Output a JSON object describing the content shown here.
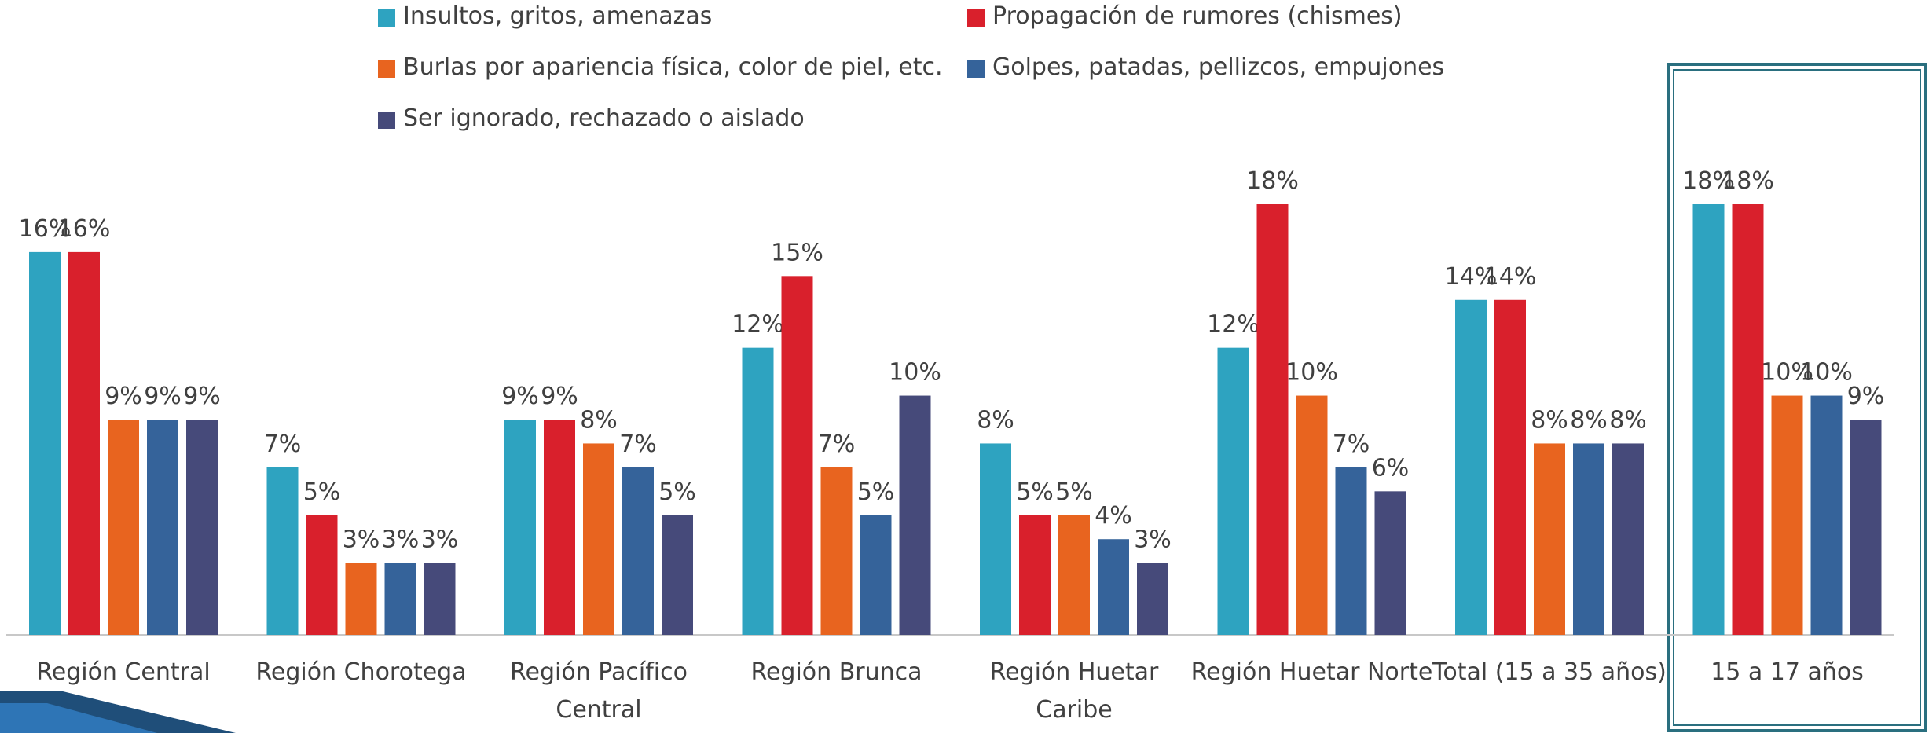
{
  "chart_data": {
    "type": "bar",
    "categories": [
      "Región Central",
      "Región Chorotega",
      "Región Pacífico Central",
      "Región Brunca",
      "Región Huetar Caribe",
      "Región Huetar Norte",
      "Total (15 a 35 años)",
      "15 a 17 años"
    ],
    "series": [
      {
        "name": "Insultos, gritos, amenazas",
        "color": "#2ea3c0",
        "values": [
          16,
          7,
          9,
          12,
          8,
          12,
          14,
          18
        ],
        "value_labels": [
          "16%",
          "7%",
          "9%",
          "12%",
          "8%",
          "12%",
          "14%",
          "18%"
        ]
      },
      {
        "name": "Propagación de rumores (chismes)",
        "color": "#d9202c",
        "values": [
          16,
          5,
          9,
          15,
          5,
          18,
          14,
          18
        ],
        "value_labels": [
          "16%",
          "5%",
          "9%",
          "15%",
          "5%",
          "18%",
          "14%",
          "18%"
        ]
      },
      {
        "name": "Burlas por apariencia física, color de piel, etc.",
        "color": "#e8641f",
        "values": [
          9,
          3,
          8,
          7,
          5,
          10,
          8,
          10
        ],
        "value_labels": [
          "9%",
          "3%",
          "8%",
          "7%",
          "5%",
          "10%",
          "8%",
          "10%"
        ]
      },
      {
        "name": "Golpes, patadas, pellizcos, empujones",
        "color": "#35639a",
        "values": [
          9,
          3,
          7,
          5,
          4,
          7,
          8,
          10
        ],
        "value_labels": [
          "9%",
          "3%",
          "7%",
          "5%",
          "4%",
          "7%",
          "8%",
          "10%"
        ]
      },
      {
        "name": "Ser ignorado, rechazado o aislado",
        "color": "#464a7a",
        "values": [
          9,
          3,
          5,
          10,
          3,
          6,
          8,
          9
        ],
        "value_labels": [
          "9%",
          "3%",
          "5%",
          "10%",
          "3%",
          "6%",
          "8%",
          "9%"
        ]
      }
    ]
  }
}
